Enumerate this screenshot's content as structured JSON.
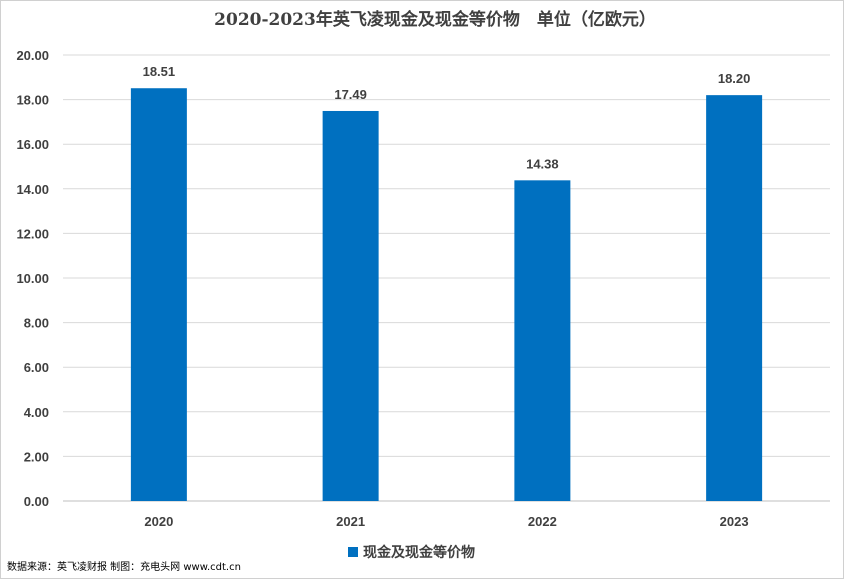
{
  "chart_data": {
    "type": "bar",
    "title": "2020-2023年英飞凌现金及现金等价物　单位（亿欧元）",
    "categories": [
      "2020",
      "2021",
      "2022",
      "2023"
    ],
    "series": [
      {
        "name": "现金及现金等价物",
        "values": [
          18.51,
          17.49,
          14.38,
          18.2
        ],
        "color": "#0070c0"
      }
    ],
    "data_labels": [
      "18.51",
      "17.49",
      "14.38",
      "18.20"
    ],
    "ylim": [
      0,
      20
    ],
    "yticks": [
      "0.00",
      "2.00",
      "4.00",
      "6.00",
      "8.00",
      "10.00",
      "12.00",
      "14.00",
      "16.00",
      "18.00",
      "20.00"
    ],
    "xlabel": "",
    "ylabel": "",
    "grid": true,
    "legend": "bottom"
  },
  "footer": {
    "source": "数据来源：英飞凌财报 制图：充电头网 www.cdt.cn"
  }
}
